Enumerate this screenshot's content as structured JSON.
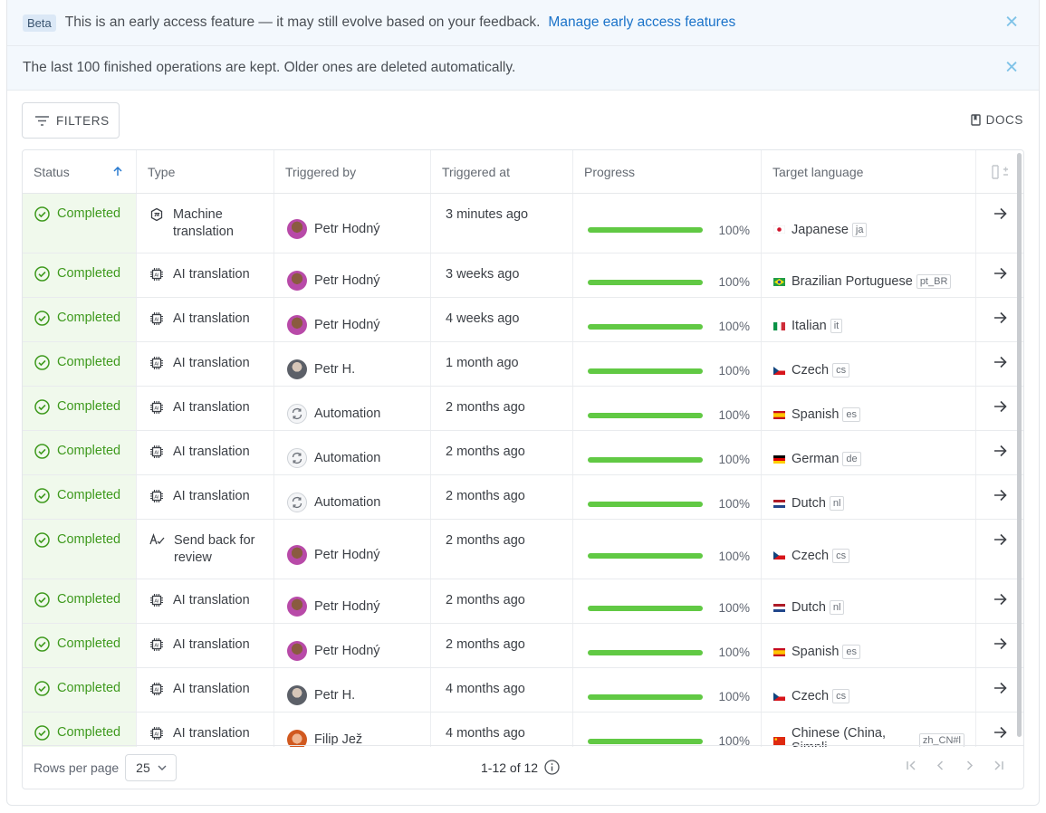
{
  "banners": {
    "beta_badge": "Beta",
    "beta_text": "This is an early access feature — it may still evolve based on your feedback.",
    "beta_link": "Manage early access features",
    "info_text": "The last 100 finished operations are kept. Older ones are deleted automatically."
  },
  "toolbar": {
    "filters_label": "FILTERS",
    "docs_label": "DOCS"
  },
  "table": {
    "columns": [
      "Status",
      "Type",
      "Triggered by",
      "Triggered at",
      "Progress",
      "Target language"
    ],
    "sort": {
      "column": "Status",
      "direction": "ascending"
    },
    "rows": [
      {
        "status": "Completed",
        "type": "Machine translation",
        "type_icon": "machine-translation-icon",
        "user": "Petr Hodný",
        "avatar": "p",
        "time": "3 minutes ago",
        "progress": 100,
        "progress_label": "100%",
        "language": "Japanese",
        "code": "ja",
        "flag": "jp"
      },
      {
        "status": "Completed",
        "type": "AI translation",
        "type_icon": "ai-chip-icon",
        "user": "Petr Hodný",
        "avatar": "p",
        "time": "3 weeks ago",
        "progress": 100,
        "progress_label": "100%",
        "language": "Brazilian Portuguese",
        "code": "pt_BR",
        "flag": "br"
      },
      {
        "status": "Completed",
        "type": "AI translation",
        "type_icon": "ai-chip-icon",
        "user": "Petr Hodný",
        "avatar": "p",
        "time": "4 weeks ago",
        "progress": 100,
        "progress_label": "100%",
        "language": "Italian",
        "code": "it",
        "flag": "it"
      },
      {
        "status": "Completed",
        "type": "AI translation",
        "type_icon": "ai-chip-icon",
        "user": "Petr H.",
        "avatar": "h",
        "time": "1 month ago",
        "progress": 100,
        "progress_label": "100%",
        "language": "Czech",
        "code": "cs",
        "flag": "cz"
      },
      {
        "status": "Completed",
        "type": "AI translation",
        "type_icon": "ai-chip-icon",
        "user": "Automation",
        "avatar": "a",
        "time": "2 months ago",
        "progress": 100,
        "progress_label": "100%",
        "language": "Spanish",
        "code": "es",
        "flag": "es"
      },
      {
        "status": "Completed",
        "type": "AI translation",
        "type_icon": "ai-chip-icon",
        "user": "Automation",
        "avatar": "a",
        "time": "2 months ago",
        "progress": 100,
        "progress_label": "100%",
        "language": "German",
        "code": "de",
        "flag": "de"
      },
      {
        "status": "Completed",
        "type": "AI translation",
        "type_icon": "ai-chip-icon",
        "user": "Automation",
        "avatar": "a",
        "time": "2 months ago",
        "progress": 100,
        "progress_label": "100%",
        "language": "Dutch",
        "code": "nl",
        "flag": "nl"
      },
      {
        "status": "Completed",
        "type": "Send back for review",
        "type_icon": "review-icon",
        "user": "Petr Hodný",
        "avatar": "p",
        "time": "2 months ago",
        "progress": 100,
        "progress_label": "100%",
        "language": "Czech",
        "code": "cs",
        "flag": "cz"
      },
      {
        "status": "Completed",
        "type": "AI translation",
        "type_icon": "ai-chip-icon",
        "user": "Petr Hodný",
        "avatar": "p",
        "time": "2 months ago",
        "progress": 100,
        "progress_label": "100%",
        "language": "Dutch",
        "code": "nl",
        "flag": "nl"
      },
      {
        "status": "Completed",
        "type": "AI translation",
        "type_icon": "ai-chip-icon",
        "user": "Petr Hodný",
        "avatar": "p",
        "time": "2 months ago",
        "progress": 100,
        "progress_label": "100%",
        "language": "Spanish",
        "code": "es",
        "flag": "es"
      },
      {
        "status": "Completed",
        "type": "AI translation",
        "type_icon": "ai-chip-icon",
        "user": "Petr H.",
        "avatar": "h",
        "time": "4 months ago",
        "progress": 100,
        "progress_label": "100%",
        "language": "Czech",
        "code": "cs",
        "flag": "cz"
      },
      {
        "status": "Completed",
        "type": "AI translation",
        "type_icon": "ai-chip-icon",
        "user": "Filip Jež",
        "avatar": "f",
        "time": "4 months ago",
        "progress": 100,
        "progress_label": "100%",
        "language": "Chinese (China, Simpli…",
        "code": "zh_CN#l",
        "flag": "cn"
      }
    ]
  },
  "footer": {
    "rows_per_page_label": "Rows per page",
    "rows_per_page_value": "25",
    "count": "1-12 of 12"
  },
  "colors": {
    "accent": "#1b73c9",
    "success": "#3f9a1e",
    "progress": "#61c944",
    "status_bg": "#f0f9ec"
  }
}
